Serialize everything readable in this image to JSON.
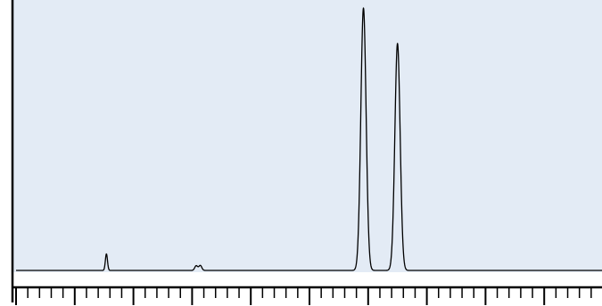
{
  "chart_data": {
    "type": "line",
    "title": "",
    "xlabel": "",
    "ylabel": "",
    "grid": false,
    "legend": "none",
    "xlim": [
      0,
      100
    ],
    "ylim": [
      0,
      100
    ],
    "x_ticks": {
      "major": [
        0,
        10,
        20,
        30,
        40,
        50,
        60,
        70,
        80,
        90,
        100
      ],
      "minor_per_major": 5,
      "labels_shown": false
    },
    "colors": {
      "plot_background": "#e3ebf5",
      "line": "#000000",
      "axis": "#000000"
    },
    "series": [
      {
        "peaks": [
          {
            "x": 15.4,
            "height": 6.3,
            "width": 0.18
          },
          {
            "x": 30.7,
            "height": 1.8,
            "width": 0.25
          },
          {
            "x": 31.4,
            "height": 1.9,
            "width": 0.25
          },
          {
            "x": 59.2,
            "height": 100,
            "width": 0.45
          },
          {
            "x": 65.0,
            "height": 86.5,
            "width": 0.45
          }
        ]
      }
    ]
  }
}
